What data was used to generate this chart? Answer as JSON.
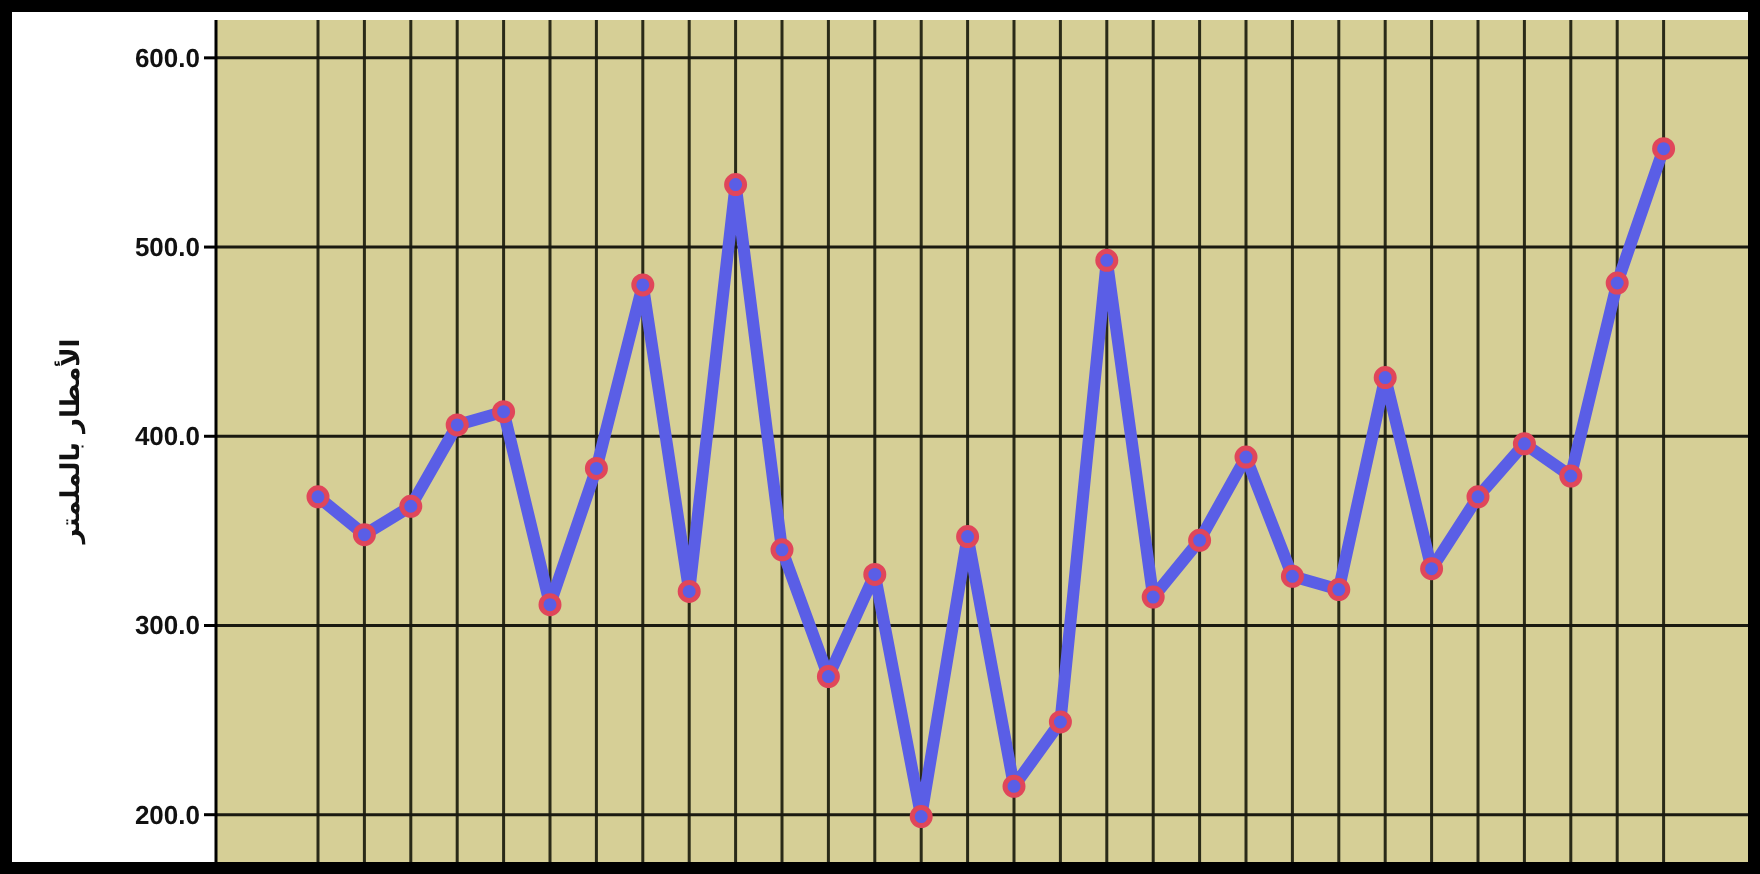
{
  "chart_data": {
    "type": "line",
    "ylabel": "الأمطار بالملمتر",
    "categories": [
      null,
      null,
      null,
      null,
      null,
      null,
      null,
      null,
      null,
      null,
      null,
      null,
      null,
      null,
      null,
      null,
      null,
      null,
      null,
      null,
      null,
      null,
      null,
      null,
      null,
      null,
      null,
      null,
      null,
      null
    ],
    "series": [
      {
        "color": "#5a5ee6",
        "values": [
          368,
          348,
          363,
          406,
          413,
          311,
          383,
          480,
          318,
          533,
          340,
          273,
          327,
          199,
          347,
          215,
          249,
          493,
          315,
          345,
          389,
          326,
          319,
          431,
          330,
          368,
          396,
          379,
          481,
          552
        ]
      }
    ],
    "ylim": [
      175,
      620
    ],
    "yticks": [
      {
        "value": 200,
        "label": "200.0"
      },
      {
        "value": 300,
        "label": "300.0"
      },
      {
        "value": 400,
        "label": "400.0"
      },
      {
        "value": 500,
        "label": "500.0"
      },
      {
        "value": 600,
        "label": "600.0"
      }
    ],
    "grid": true,
    "marker": "circle",
    "line_style": "solid"
  }
}
